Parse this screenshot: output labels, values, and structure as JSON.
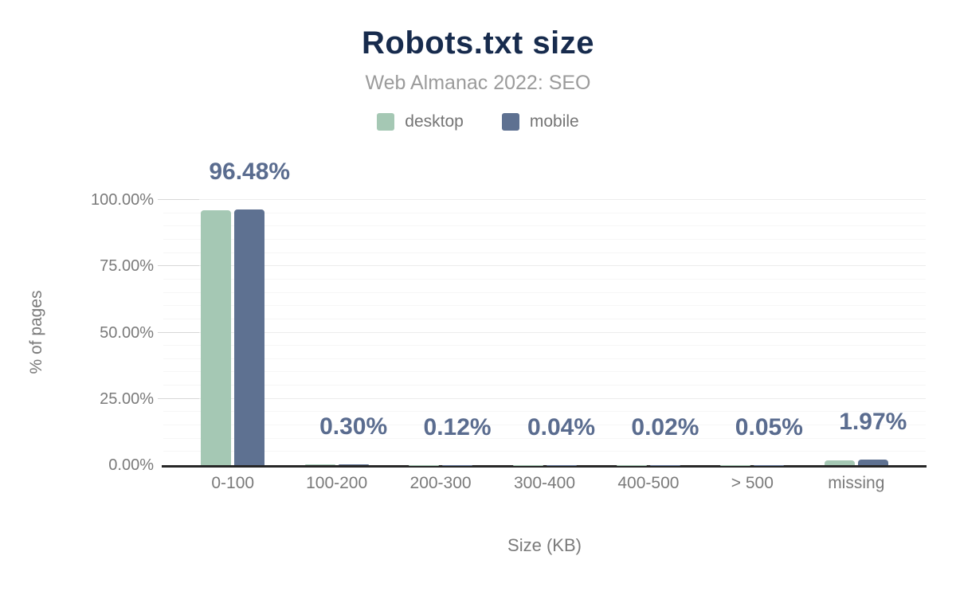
{
  "chart_data": {
    "type": "bar",
    "title": "Robots.txt size",
    "subtitle": "Web Almanac 2022: SEO",
    "xlabel": "Size (KB)",
    "ylabel": "% of pages",
    "categories": [
      "0-100",
      "100-200",
      "200-300",
      "300-400",
      "400-500",
      "> 500",
      "missing"
    ],
    "series": [
      {
        "name": "desktop",
        "color": "#a5c8b4",
        "values": [
          96.2,
          0.3,
          0.12,
          0.04,
          0.02,
          0.05,
          1.8
        ]
      },
      {
        "name": "mobile",
        "color": "#5e7191",
        "values": [
          96.48,
          0.3,
          0.12,
          0.04,
          0.02,
          0.05,
          1.97
        ]
      }
    ],
    "bar_labels": [
      "96.48%",
      "0.30%",
      "0.12%",
      "0.04%",
      "0.02%",
      "0.05%",
      "1.97%"
    ],
    "ylim": [
      0,
      100
    ],
    "ytick_labels": [
      "0.00%",
      "25.00%",
      "50.00%",
      "75.00%",
      "100.00%"
    ],
    "ytick_step": 25,
    "minor_grid_step": 5,
    "grid": "horizontal",
    "legend_position": "top"
  },
  "colors": {
    "background": "#ffffff",
    "title": "#172b4d",
    "subtitle": "#9b9b9b",
    "legend_text": "#757575",
    "axis_text": "#7a7a7a",
    "value_label": "#5a6c8f",
    "axis_line": "#262626",
    "desktop": "#a5c8b4",
    "mobile": "#5e7191"
  }
}
